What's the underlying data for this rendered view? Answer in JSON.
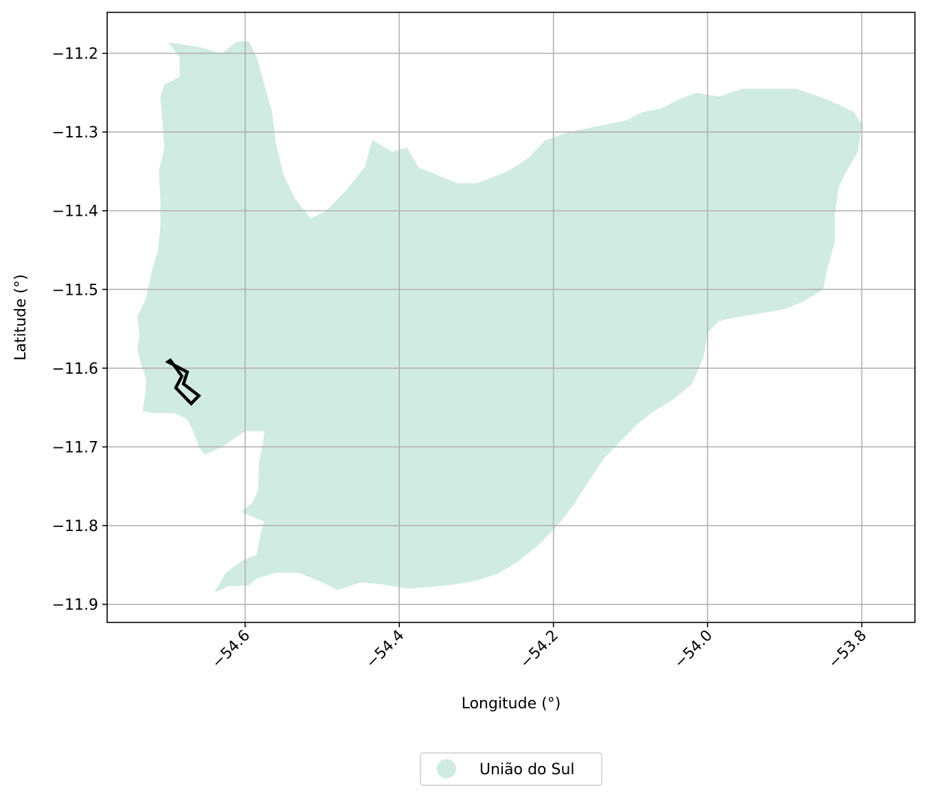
{
  "chart_data": {
    "type": "map",
    "xlabel": "Longitude (°)",
    "ylabel": "Latitude (°)",
    "xlim": [
      -54.779,
      -53.731
    ],
    "ylim": [
      -11.923,
      -11.148
    ],
    "x_ticks": [
      -54.6,
      -54.4,
      -54.2,
      -54.0,
      -53.8
    ],
    "x_tick_labels": [
      "−54.6",
      "−54.4",
      "−54.2",
      "−54.0",
      "−53.8"
    ],
    "y_ticks": [
      -11.2,
      -11.3,
      -11.4,
      -11.5,
      -11.6,
      -11.7,
      -11.8,
      -11.9
    ],
    "y_tick_labels": [
      "−11.2",
      "−11.3",
      "−11.4",
      "−11.5",
      "−11.6",
      "−11.7",
      "−11.8",
      "−11.9"
    ],
    "grid": true,
    "legend_position": "bottom-center",
    "legend": [
      {
        "label": "União do Sul",
        "color": "#d0ebdf"
      }
    ],
    "colors": {
      "region_fill": "#d0ebdf",
      "highlight_outline": "#000000",
      "grid": "#b0b0b0"
    },
    "region": {
      "name": "União do Sul",
      "boundary": [
        [
          -54.7,
          -11.186
        ],
        [
          -54.66,
          -11.192
        ],
        [
          -54.63,
          -11.2
        ],
        [
          -54.61,
          -11.185
        ],
        [
          -54.595,
          -11.185
        ],
        [
          -54.585,
          -11.205
        ],
        [
          -54.575,
          -11.24
        ],
        [
          -54.565,
          -11.275
        ],
        [
          -54.56,
          -11.315
        ],
        [
          -54.55,
          -11.355
        ],
        [
          -54.535,
          -11.385
        ],
        [
          -54.515,
          -11.41
        ],
        [
          -54.495,
          -11.4
        ],
        [
          -54.47,
          -11.375
        ],
        [
          -54.445,
          -11.345
        ],
        [
          -54.435,
          -11.31
        ],
        [
          -54.41,
          -11.325
        ],
        [
          -54.39,
          -11.32
        ],
        [
          -54.375,
          -11.345
        ],
        [
          -54.35,
          -11.355
        ],
        [
          -54.325,
          -11.365
        ],
        [
          -54.3,
          -11.365
        ],
        [
          -54.285,
          -11.36
        ],
        [
          -54.26,
          -11.35
        ],
        [
          -54.235,
          -11.335
        ],
        [
          -54.21,
          -11.31
        ],
        [
          -54.18,
          -11.3
        ],
        [
          -54.155,
          -11.295
        ],
        [
          -54.13,
          -11.29
        ],
        [
          -54.105,
          -11.285
        ],
        [
          -54.085,
          -11.275
        ],
        [
          -54.06,
          -11.27
        ],
        [
          -54.04,
          -11.26
        ],
        [
          -54.015,
          -11.25
        ],
        [
          -53.985,
          -11.255
        ],
        [
          -53.955,
          -11.245
        ],
        [
          -53.92,
          -11.245
        ],
        [
          -53.885,
          -11.245
        ],
        [
          -53.855,
          -11.255
        ],
        [
          -53.83,
          -11.265
        ],
        [
          -53.81,
          -11.275
        ],
        [
          -53.8,
          -11.29
        ],
        [
          -53.805,
          -11.325
        ],
        [
          -53.82,
          -11.35
        ],
        [
          -53.83,
          -11.37
        ],
        [
          -53.835,
          -11.405
        ],
        [
          -53.835,
          -11.44
        ],
        [
          -53.845,
          -11.475
        ],
        [
          -53.85,
          -11.5
        ],
        [
          -53.875,
          -11.515
        ],
        [
          -53.9,
          -11.525
        ],
        [
          -53.93,
          -11.53
        ],
        [
          -53.96,
          -11.535
        ],
        [
          -53.985,
          -11.54
        ],
        [
          -54.0,
          -11.555
        ],
        [
          -54.005,
          -11.585
        ],
        [
          -54.02,
          -11.62
        ],
        [
          -54.045,
          -11.64
        ],
        [
          -54.07,
          -11.655
        ],
        [
          -54.09,
          -11.67
        ],
        [
          -54.11,
          -11.69
        ],
        [
          -54.135,
          -11.715
        ],
        [
          -54.155,
          -11.745
        ],
        [
          -54.175,
          -11.775
        ],
        [
          -54.195,
          -11.8
        ],
        [
          -54.22,
          -11.825
        ],
        [
          -54.245,
          -11.845
        ],
        [
          -54.27,
          -11.86
        ],
        [
          -54.3,
          -11.87
        ],
        [
          -54.33,
          -11.875
        ],
        [
          -54.36,
          -11.878
        ],
        [
          -54.39,
          -11.88
        ],
        [
          -54.42,
          -11.875
        ],
        [
          -54.45,
          -11.872
        ],
        [
          -54.48,
          -11.882
        ],
        [
          -54.5,
          -11.872
        ],
        [
          -54.53,
          -11.86
        ],
        [
          -54.56,
          -11.86
        ],
        [
          -54.585,
          -11.867
        ],
        [
          -54.595,
          -11.876
        ],
        [
          -54.622,
          -11.877
        ],
        [
          -54.64,
          -11.885
        ],
        [
          -54.625,
          -11.86
        ],
        [
          -54.605,
          -11.845
        ],
        [
          -54.585,
          -11.837
        ],
        [
          -54.58,
          -11.81
        ],
        [
          -54.575,
          -11.795
        ],
        [
          -54.587,
          -11.79
        ],
        [
          -54.605,
          -11.783
        ],
        [
          -54.59,
          -11.77
        ],
        [
          -54.583,
          -11.755
        ],
        [
          -54.582,
          -11.72
        ],
        [
          -54.577,
          -11.695
        ],
        [
          -54.575,
          -11.68
        ],
        [
          -54.6,
          -11.68
        ],
        [
          -54.615,
          -11.69
        ],
        [
          -54.63,
          -11.7
        ],
        [
          -54.652,
          -11.71
        ],
        [
          -54.66,
          -11.7
        ],
        [
          -54.665,
          -11.685
        ],
        [
          -54.675,
          -11.665
        ],
        [
          -54.692,
          -11.657
        ],
        [
          -54.718,
          -11.657
        ],
        [
          -54.733,
          -11.655
        ],
        [
          -54.73,
          -11.635
        ],
        [
          -54.728,
          -11.615
        ],
        [
          -54.735,
          -11.595
        ],
        [
          -54.74,
          -11.575
        ],
        [
          -54.737,
          -11.558
        ],
        [
          -54.74,
          -11.535
        ],
        [
          -54.728,
          -11.51
        ],
        [
          -54.722,
          -11.48
        ],
        [
          -54.713,
          -11.45
        ],
        [
          -54.71,
          -11.42
        ],
        [
          -54.71,
          -11.385
        ],
        [
          -54.712,
          -11.35
        ],
        [
          -54.705,
          -11.32
        ],
        [
          -54.707,
          -11.29
        ],
        [
          -54.71,
          -11.255
        ],
        [
          -54.705,
          -11.24
        ],
        [
          -54.685,
          -11.23
        ],
        [
          -54.685,
          -11.205
        ]
      ]
    },
    "highlight": {
      "label": "",
      "outline": [
        [
          -54.7,
          -11.592
        ],
        [
          -54.675,
          -11.605
        ],
        [
          -54.68,
          -11.62
        ],
        [
          -54.66,
          -11.635
        ],
        [
          -54.67,
          -11.645
        ],
        [
          -54.69,
          -11.625
        ],
        [
          -54.682,
          -11.61
        ],
        [
          -54.697,
          -11.59
        ]
      ]
    }
  }
}
